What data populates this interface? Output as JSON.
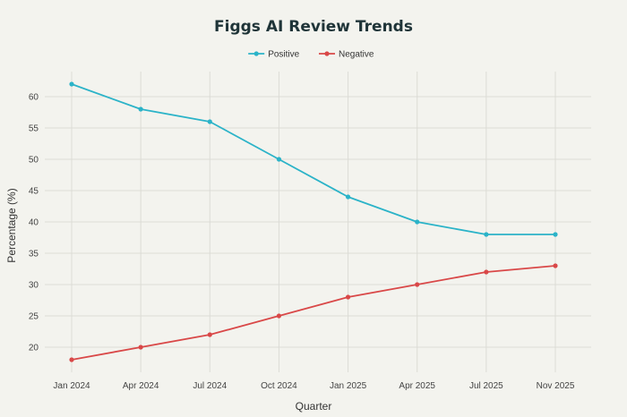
{
  "chart_data": {
    "type": "line",
    "title": "Figgs AI Review Trends",
    "xlabel": "Quarter",
    "ylabel": "Percentage (%)",
    "categories": [
      "Jan 2024",
      "Apr 2024",
      "Jul 2024",
      "Oct 2024",
      "Jan 2025",
      "Apr 2025",
      "Jul 2025",
      "Nov 2025"
    ],
    "ylim": [
      16,
      64
    ],
    "yticks": [
      20,
      25,
      30,
      35,
      40,
      45,
      50,
      55,
      60
    ],
    "grid": true,
    "legend_position": "top-center",
    "series": [
      {
        "name": "Positive",
        "color": "#2bb3c8",
        "values": [
          62,
          58,
          56,
          50,
          44,
          40,
          38,
          38
        ]
      },
      {
        "name": "Negative",
        "color": "#d94848",
        "values": [
          18,
          20,
          22,
          25,
          28,
          30,
          32,
          33
        ]
      }
    ]
  }
}
